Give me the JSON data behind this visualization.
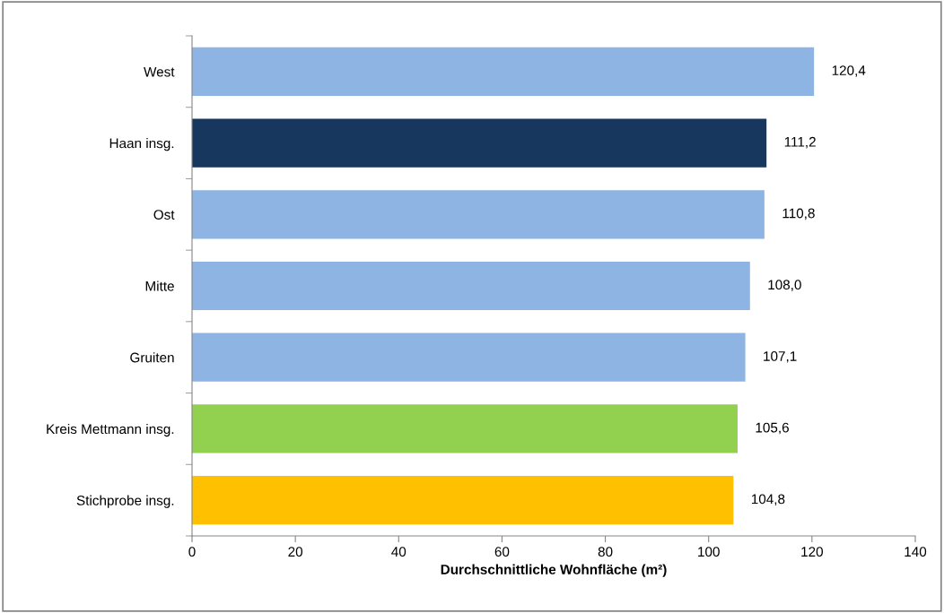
{
  "chart_data": {
    "type": "bar",
    "orientation": "horizontal",
    "xlabel": "Durchschnittliche Wohnfläche (m²)",
    "categories": [
      "West",
      "Haan insg.",
      "Ost",
      "Mitte",
      "Gruiten",
      "Kreis Mettmann insg.",
      "Stichprobe insg."
    ],
    "values": [
      120.4,
      111.2,
      110.8,
      108.0,
      107.1,
      105.6,
      104.8
    ],
    "value_labels": [
      "120,4",
      "111,2",
      "110,8",
      "108,0",
      "107,1",
      "105,6",
      "104,8"
    ],
    "colors": [
      "#8eb4e3",
      "#17375e",
      "#8eb4e3",
      "#8eb4e3",
      "#8eb4e3",
      "#92d050",
      "#ffc000"
    ],
    "xlim": [
      0,
      140
    ],
    "xticks": [
      0,
      20,
      40,
      60,
      80,
      100,
      120,
      140
    ],
    "grid": false,
    "legend": false
  }
}
